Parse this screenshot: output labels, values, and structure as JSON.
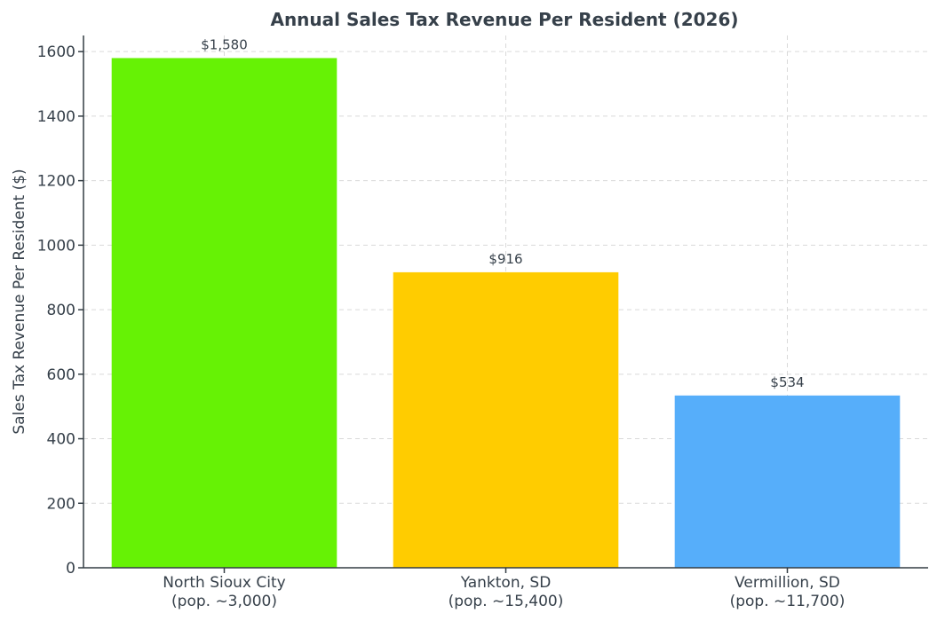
{
  "chart_data": {
    "type": "bar",
    "title": "Annual Sales Tax Revenue Per Resident (2026)",
    "xlabel": "",
    "ylabel": "Sales Tax Revenue Per Resident ($)",
    "ylim": [
      0,
      1650
    ],
    "yticks": [
      0,
      200,
      400,
      600,
      800,
      1000,
      1200,
      1400,
      1600
    ],
    "grid": true,
    "categories": [
      [
        "North Sioux City",
        "(pop. ~3,000)"
      ],
      [
        "Yankton, SD",
        "(pop. ~15,400)"
      ],
      [
        "Vermillion, SD",
        "(pop. ~11,700)"
      ]
    ],
    "values": [
      1580,
      916,
      534
    ],
    "data_labels": [
      "$1,580",
      "$916",
      "$534"
    ],
    "colors": [
      "#66f205",
      "#ffcc00",
      "#56aefa"
    ]
  }
}
